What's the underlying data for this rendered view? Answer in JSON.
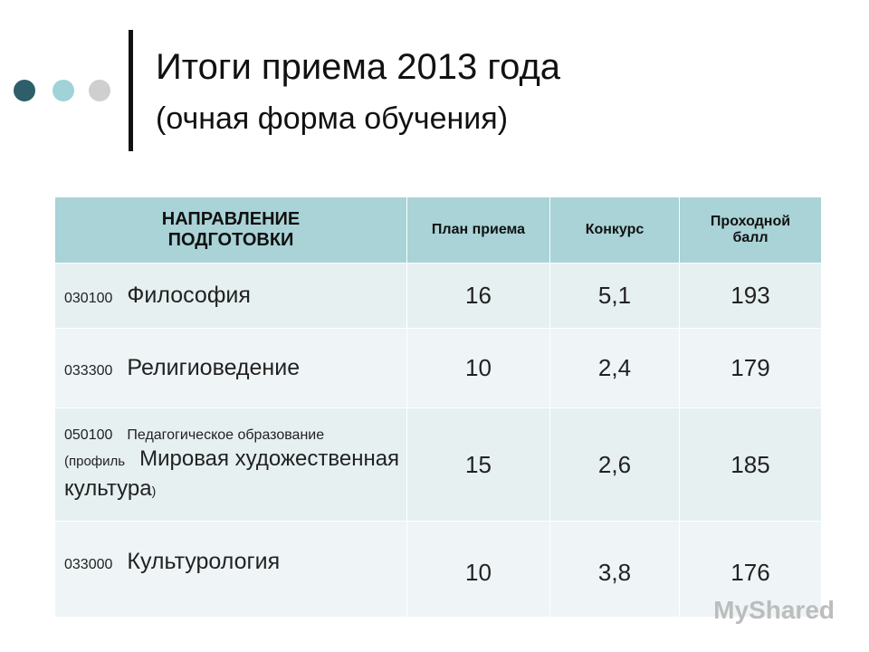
{
  "header": {
    "title": "Итоги приема 2013 года",
    "subtitle": "(очная форма обучения)"
  },
  "table": {
    "columns": [
      "НАПРАВЛЕНИЕ ПОДГОТОВКИ",
      "План приема",
      "Конкурс",
      "Проходной балл"
    ],
    "rows": [
      {
        "code": "030100",
        "name": "Философия",
        "plan": "16",
        "competition": "5,1",
        "score": "193"
      },
      {
        "code": "033300",
        "name": "Религиоведение",
        "plan": "10",
        "competition": "2,4",
        "score": "179"
      },
      {
        "code": "050100",
        "name": "Педагогическое образование",
        "profile_open": "(профиль",
        "profile": "Мировая художественная культура",
        "profile_close": ")",
        "plan": "15",
        "competition": "2,6",
        "score": "185"
      },
      {
        "code": "033000",
        "name": "Культурология",
        "plan": "10",
        "competition": "3,8",
        "score": "176"
      }
    ]
  },
  "watermark": "MyShared"
}
